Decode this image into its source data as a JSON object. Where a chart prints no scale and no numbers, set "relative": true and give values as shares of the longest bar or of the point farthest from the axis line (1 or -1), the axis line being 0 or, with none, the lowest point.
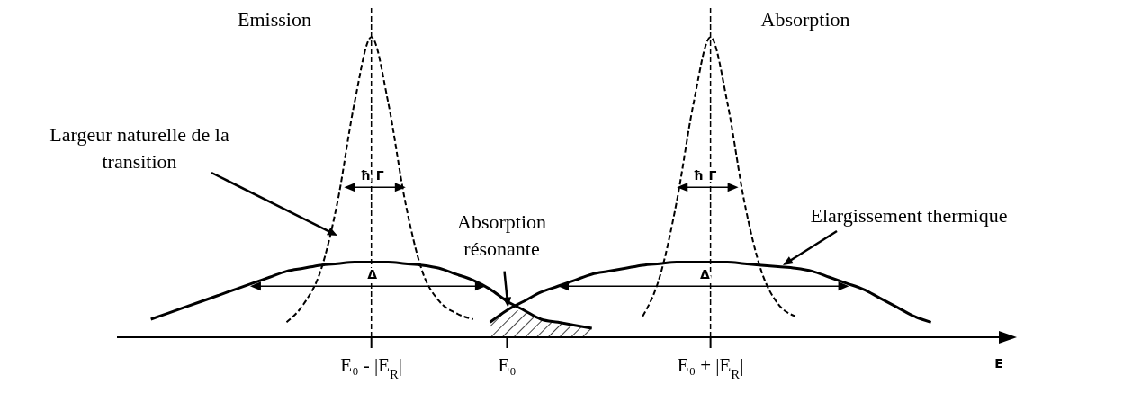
{
  "chart_data": {
    "type": "line",
    "relative": true,
    "xlabel": "E",
    "marker": "none",
    "grid": false,
    "categories": [
      null,
      null,
      null,
      null,
      null,
      null,
      null,
      null,
      null,
      null,
      null,
      null,
      null,
      null,
      null,
      "E₀ - |E$_{R}$|",
      null,
      null,
      null,
      null,
      null,
      null,
      null,
      "E₀",
      null,
      null,
      null,
      null,
      null,
      null,
      null,
      null,
      null,
      null,
      null,
      "E₀ + |E$_{R}$|",
      null,
      null,
      null,
      null,
      null,
      null,
      null,
      null,
      null,
      null,
      null,
      null,
      null,
      null,
      null,
      null,
      null
    ],
    "series": [
      {
        "color": "#000000",
        "line_style": "dashed",
        "values": [
          null,
          null,
          null,
          null,
          null,
          null,
          null,
          null,
          null,
          null,
          0.05,
          0.11,
          0.22,
          0.45,
          0.78,
          1,
          0.78,
          0.45,
          0.22,
          0.12,
          0.08,
          0.06,
          null,
          null,
          null,
          null,
          null,
          null,
          null,
          null,
          null,
          null,
          null,
          null,
          null,
          null,
          null,
          null,
          null,
          null,
          null,
          null,
          null,
          null,
          null,
          null,
          null,
          null,
          null,
          null,
          null,
          null,
          null
        ]
      },
      {
        "color": "#000000",
        "line_style": "dashed",
        "values": [
          null,
          null,
          null,
          null,
          null,
          null,
          null,
          null,
          null,
          null,
          null,
          null,
          null,
          null,
          null,
          null,
          null,
          null,
          null,
          null,
          null,
          null,
          null,
          null,
          null,
          null,
          null,
          null,
          null,
          null,
          null,
          0.07,
          0.2,
          0.45,
          0.78,
          1,
          0.78,
          0.45,
          0.22,
          0.11,
          0.07,
          null,
          null,
          null,
          null,
          null,
          null,
          null,
          null,
          null,
          null,
          null,
          null
        ]
      },
      {
        "color": "#000000",
        "line_style": "solid",
        "values": [
          null,
          null,
          0.06,
          0.08,
          0.1,
          0.12,
          0.14,
          0.16,
          0.18,
          0.2,
          0.22,
          0.23,
          0.24,
          0.245,
          0.25,
          0.25,
          0.25,
          0.245,
          0.24,
          0.23,
          0.21,
          0.19,
          0.16,
          0.12,
          0.09,
          0.06,
          0.05,
          0.04,
          0.03,
          null,
          null,
          null,
          null,
          null,
          null,
          null,
          null,
          null,
          null,
          null,
          null,
          null,
          null,
          null,
          null,
          null,
          null,
          null,
          null,
          null,
          null,
          null,
          null
        ]
      },
      {
        "color": "#000000",
        "line_style": "solid",
        "values": [
          null,
          null,
          null,
          null,
          null,
          null,
          null,
          null,
          null,
          null,
          null,
          null,
          null,
          null,
          null,
          null,
          null,
          null,
          null,
          null,
          null,
          null,
          0.05,
          0.09,
          0.12,
          0.15,
          0.17,
          0.19,
          0.21,
          0.22,
          0.23,
          0.24,
          0.245,
          0.25,
          0.25,
          0.25,
          0.25,
          0.245,
          0.24,
          0.235,
          0.23,
          0.22,
          0.2,
          0.18,
          0.16,
          0.13,
          0.1,
          0.07,
          0.05,
          null,
          null,
          null,
          null
        ]
      },
      {
        "type": "area",
        "color": "#000000",
        "values": [
          null,
          null,
          null,
          null,
          null,
          null,
          null,
          null,
          null,
          null,
          null,
          null,
          null,
          null,
          null,
          null,
          null,
          null,
          null,
          null,
          null,
          null,
          0.05,
          0.09,
          0.09,
          0.06,
          0.05,
          0.04,
          0.03,
          null,
          null,
          null,
          null,
          null,
          null,
          null,
          null,
          null,
          null,
          null,
          null,
          null,
          null,
          null,
          null,
          null,
          null,
          null,
          null,
          null,
          null,
          null,
          null
        ]
      }
    ],
    "ref_lines": [
      {
        "axis": "x",
        "value": "E₀ - |E$_{R}$|",
        "line_style": "dashed",
        "color": "#000000"
      },
      {
        "axis": "x",
        "value": "E₀ + |E$_{R}$|",
        "line_style": "dashed",
        "color": "#000000"
      }
    ],
    "annotations": [
      "Emission",
      "Absorption",
      "Largeur naturelle de la transition",
      {
        "text": "Absorption résonante",
        "x": "E₀",
        "y": 0.1
      },
      "Elargissement thermique",
      {
        "text": "ħΓ",
        "x": "E₀ - |E$_{R}$|",
        "y": 0.5
      },
      {
        "text": "ħΓ",
        "x": "E₀ + |E$_{R}$|",
        "y": 0.5
      },
      {
        "text": "Δ",
        "x": "E₀ - |E$_{R}$|",
        "y": 0.17
      },
      {
        "text": "Δ",
        "x": "E₀ + |E$_{R}$|",
        "y": 0.17
      }
    ]
  }
}
